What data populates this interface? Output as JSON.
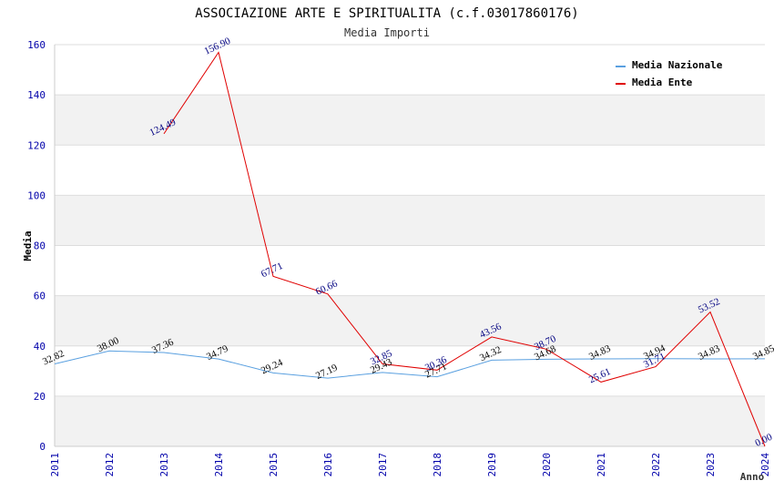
{
  "chart_data": {
    "type": "line",
    "title": "ASSOCIAZIONE ARTE E SPIRITUALITA (c.f.03017860176)",
    "subtitle": "Media Importi",
    "xlabel": "Anno",
    "ylabel": "Media",
    "x": [
      "2011",
      "2012",
      "2013",
      "2014",
      "2015",
      "2016",
      "2017",
      "2018",
      "2019",
      "2020",
      "2021",
      "2022",
      "2023",
      "2024"
    ],
    "ylim": [
      0,
      160
    ],
    "yticks": [
      0,
      20,
      40,
      60,
      80,
      100,
      120,
      140,
      160
    ],
    "legend_position": "top-right",
    "grid": true,
    "series": [
      {
        "name": "Media Nazionale",
        "color": "#5aa0e0",
        "label_color": "#000000",
        "values": [
          32.82,
          38.0,
          37.36,
          34.79,
          29.24,
          27.19,
          29.43,
          27.71,
          34.32,
          34.68,
          34.83,
          34.94,
          34.83,
          34.85
        ],
        "labels": [
          "32.82",
          "38.00",
          "37.36",
          "34.79",
          "29.24",
          "27.19",
          "29.43",
          "27.71",
          "34.32",
          "34.68",
          "34.83",
          "34.94",
          "34.83",
          "34.85"
        ]
      },
      {
        "name": "Media Ente",
        "color": "#e00000",
        "label_color": "#000080",
        "values": [
          null,
          null,
          124.49,
          156.9,
          67.71,
          60.66,
          32.85,
          30.36,
          43.56,
          38.7,
          25.61,
          31.71,
          53.52,
          0.0
        ],
        "labels": [
          "",
          "",
          "124.49",
          "156.90",
          "67.71",
          "60.66",
          "32.85",
          "30.36",
          "43.56",
          "38.70",
          "25.61",
          "31.71",
          "53.52",
          "0.00"
        ]
      }
    ]
  }
}
